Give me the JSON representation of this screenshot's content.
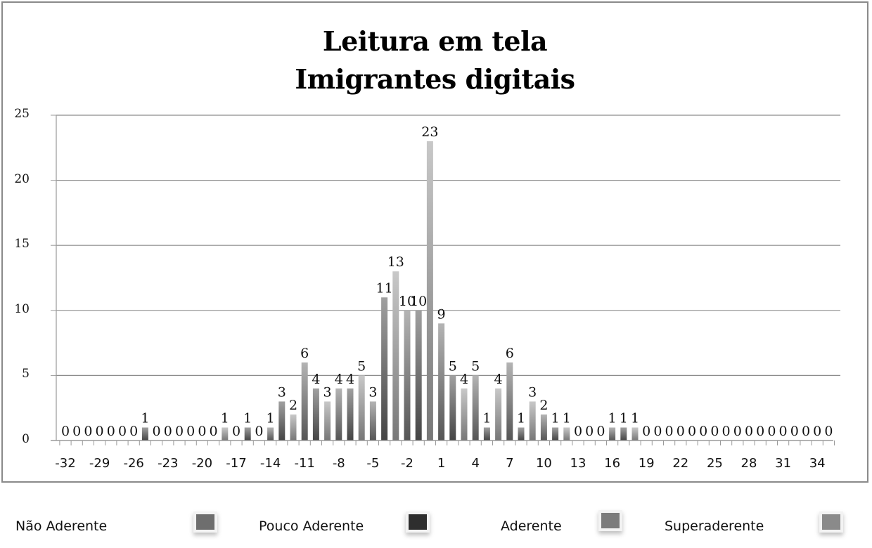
{
  "chart_data": {
    "type": "bar",
    "title": "Leitura em tela\nImigrantes digitais",
    "title_lines": [
      "Leitura em tela",
      "Imigrantes digitais"
    ],
    "xlabel": "",
    "ylabel": "",
    "ylim": [
      0,
      25
    ],
    "yticks": [
      0,
      5,
      10,
      15,
      20,
      25
    ],
    "grid": true,
    "legend_position": "bottom",
    "x_tick_labels": [
      "-32",
      "-29",
      "-26",
      "-23",
      "-20",
      "-17",
      "-14",
      "-11",
      "-8",
      "-5",
      "-2",
      "1",
      "4",
      "7",
      "10",
      "13",
      "16",
      "19",
      "22",
      "25",
      "28",
      "31",
      "34"
    ],
    "categories": [
      -32,
      -31,
      -30,
      -29,
      -28,
      -27,
      -26,
      -25,
      -24,
      -23,
      -22,
      -21,
      -20,
      -19,
      -18,
      -17,
      -16,
      -15,
      -14,
      -13,
      -12,
      -11,
      -10,
      -9,
      -8,
      -7,
      -6,
      -5,
      -4,
      -3,
      -2,
      -1,
      0,
      1,
      2,
      3,
      4,
      5,
      6,
      7,
      8,
      9,
      10,
      11,
      12,
      13,
      14,
      15,
      16,
      17,
      18,
      19,
      20,
      21,
      22,
      23,
      24,
      25,
      26,
      27,
      28,
      29,
      30,
      31,
      32,
      33,
      34,
      35
    ],
    "values": [
      0,
      0,
      0,
      0,
      0,
      0,
      0,
      1,
      0,
      0,
      0,
      0,
      0,
      0,
      1,
      0,
      1,
      0,
      1,
      3,
      2,
      6,
      4,
      3,
      4,
      4,
      5,
      3,
      11,
      13,
      10,
      10,
      23,
      9,
      5,
      4,
      5,
      1,
      4,
      6,
      1,
      3,
      2,
      1,
      1,
      0,
      0,
      0,
      1,
      1,
      1,
      0,
      0,
      0,
      0,
      0,
      0,
      0,
      0,
      0,
      0,
      0,
      0,
      0,
      0,
      0,
      0,
      0
    ],
    "series_legend": [
      {
        "name": "Não Aderente",
        "color": "#6e6e6e"
      },
      {
        "name": "Pouco Aderente",
        "color": "#2e2e2e"
      },
      {
        "name": "Aderente",
        "color": "#7c7c7c"
      },
      {
        "name": "Superaderente",
        "color": "#8a8a8a"
      }
    ],
    "data_labels": true
  },
  "title": {
    "line1": "Leitura em tela",
    "line2": "Imigrantes digitais"
  },
  "legend": {
    "items": [
      {
        "label": "Não Aderente",
        "color": "#6e6e6e"
      },
      {
        "label": "Pouco Aderente",
        "color": "#2e2e2e"
      },
      {
        "label": "Aderente",
        "color": "#7c7c7c"
      },
      {
        "label": "Superaderente",
        "color": "#8a8a8a"
      }
    ]
  },
  "colors": {
    "gridline": "#8c8c8c",
    "axis": "#9a9a9a",
    "frame": "#8a8a8a"
  }
}
